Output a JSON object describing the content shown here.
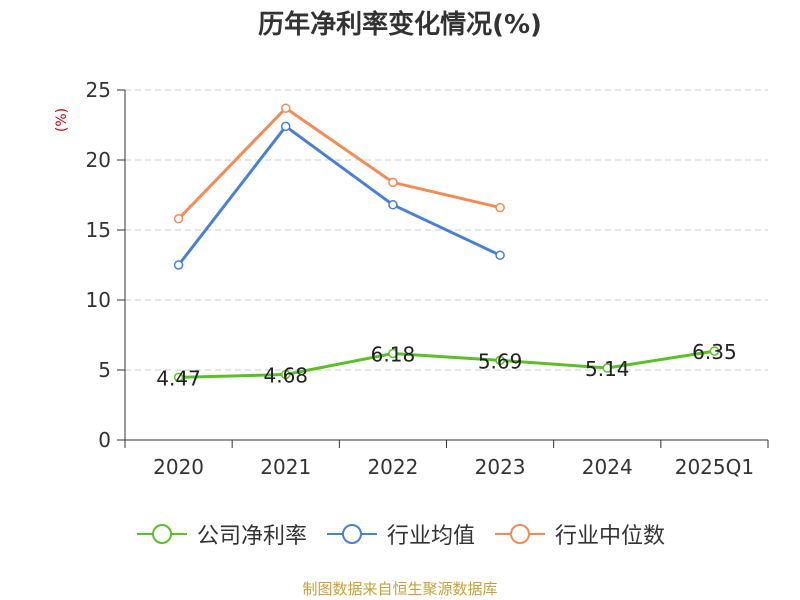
{
  "chart_data": {
    "type": "line",
    "title": "历年净利率变化情况(%)",
    "unit_label": "(%)",
    "categories": [
      "2020",
      "2021",
      "2022",
      "2023",
      "2024",
      "2025Q1"
    ],
    "ylim": [
      0,
      25
    ],
    "yticks": [
      0,
      5,
      10,
      15,
      20,
      25
    ],
    "grid": true,
    "legend_position": "bottom",
    "series": [
      {
        "name": "公司净利率",
        "color": "#5cbf2a",
        "show_labels": true,
        "values": [
          4.47,
          4.68,
          6.18,
          5.69,
          5.14,
          6.35
        ]
      },
      {
        "name": "行业均值",
        "color": "#4a7fd6",
        "show_labels": false,
        "values": [
          12.5,
          22.4,
          16.8,
          13.2,
          null,
          null
        ]
      },
      {
        "name": "行业中位数",
        "color": "#f28b56",
        "show_labels": false,
        "values": [
          15.8,
          23.7,
          18.4,
          16.6,
          null,
          null
        ]
      }
    ],
    "source": "制图数据来自恒生聚源数据库"
  }
}
